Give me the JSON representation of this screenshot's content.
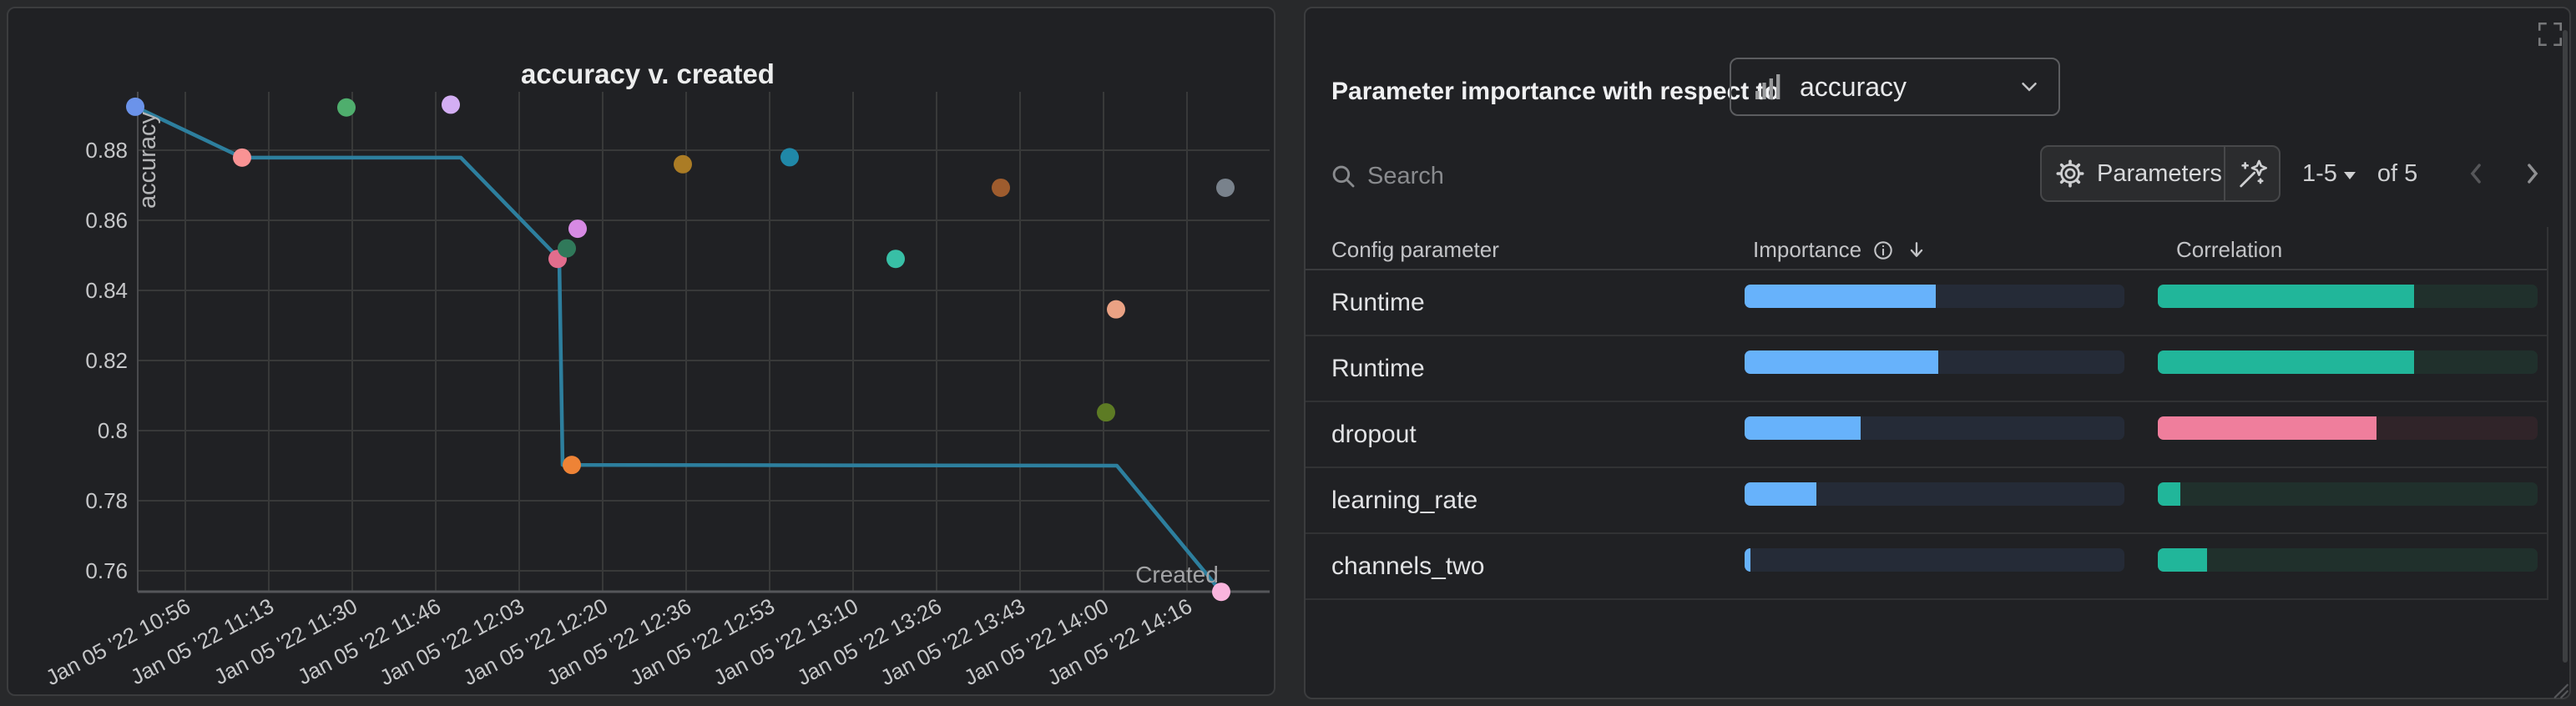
{
  "left_panel": {
    "title": "accuracy v. created",
    "chart_data": {
      "type": "scatter",
      "title": "accuracy v. created",
      "xlabel": "Created",
      "ylabel": "accuracy",
      "x_tick_labels": [
        "Jan 05 '22 10:56",
        "Jan 05 '22 11:13",
        "Jan 05 '22 11:30",
        "Jan 05 '22 11:46",
        "Jan 05 '22 12:03",
        "Jan 05 '22 12:20",
        "Jan 05 '22 12:36",
        "Jan 05 '22 12:53",
        "Jan 05 '22 13:10",
        "Jan 05 '22 13:26",
        "Jan 05 '22 13:43",
        "Jan 05 '22 14:00",
        "Jan 05 '22 14:16"
      ],
      "y_ticks": [
        0.88,
        0.86,
        0.84,
        0.82,
        0.8,
        0.78,
        0.76
      ],
      "y_tick_labels": [
        "0.88",
        "0.86",
        "0.84",
        "0.82",
        "0.8",
        "0.78",
        "0.76"
      ],
      "grid": true,
      "points": [
        {
          "x": -0.6,
          "y": 0.8924,
          "color": "#6b93ea"
        },
        {
          "x": 0.68,
          "y": 0.8779,
          "color": "#f99394"
        },
        {
          "x": 1.93,
          "y": 0.8922,
          "color": "#4fae6d"
        },
        {
          "x": 3.18,
          "y": 0.893,
          "color": "#d3aef3"
        },
        {
          "x": 4.46,
          "y": 0.849,
          "color": "#e26d8d"
        },
        {
          "x": 4.57,
          "y": 0.852,
          "color": "#30795a"
        },
        {
          "x": 4.7,
          "y": 0.8576,
          "color": "#d78ae4"
        },
        {
          "x": 4.63,
          "y": 0.7902,
          "color": "#ee8336"
        },
        {
          "x": 5.96,
          "y": 0.876,
          "color": "#ab7c25"
        },
        {
          "x": 7.24,
          "y": 0.878,
          "color": "#2088a8"
        },
        {
          "x": 8.51,
          "y": 0.849,
          "color": "#38bfa6"
        },
        {
          "x": 9.77,
          "y": 0.8693,
          "color": "#9e5c2e"
        },
        {
          "x": 11.03,
          "y": 0.8052,
          "color": "#5d7b24"
        },
        {
          "x": 11.15,
          "y": 0.8346,
          "color": "#eaa284"
        },
        {
          "x": 12.46,
          "y": 0.8693,
          "color": "#79828c"
        },
        {
          "x": 12.41,
          "y": 0.754,
          "color": "#f9b4dd"
        }
      ],
      "line": {
        "color": "#2d7f9e",
        "vertices": [
          [
            -0.6,
            0.8924
          ],
          [
            0.68,
            0.8779
          ],
          [
            3.3,
            0.8779
          ],
          [
            4.48,
            0.849
          ],
          [
            4.52,
            0.7902
          ],
          [
            11.16,
            0.79
          ],
          [
            12.41,
            0.754
          ]
        ]
      },
      "x_axis_note": "ticks every 16min 40s"
    }
  },
  "right_panel": {
    "title": "Parameter importance with respect to",
    "metric_select": {
      "value": "accuracy",
      "icon": "bar-chart"
    },
    "search_placeholder": "Search",
    "parameters_label": "Parameters",
    "pagination": {
      "range": "1-5",
      "of_label": "of 5"
    },
    "table": {
      "columns": {
        "parameter": "Config parameter",
        "importance": "Importance",
        "correlation": "Correlation"
      },
      "rows": [
        {
          "name": "Runtime",
          "importance": 0.503,
          "correlation": 0.675,
          "correlation_color": "#21b69a",
          "correlation_track": "#20302c"
        },
        {
          "name": "Runtime",
          "importance": 0.51,
          "correlation": 0.675,
          "correlation_color": "#21b69a",
          "correlation_track": "#20302c"
        },
        {
          "name": "dropout",
          "importance": 0.305,
          "correlation": 0.576,
          "correlation_color": "#ef7e9c",
          "correlation_track": "#302429"
        },
        {
          "name": "learning_rate",
          "importance": 0.19,
          "correlation": 0.06,
          "correlation_color": "#21b69a",
          "correlation_track": "#20302c"
        },
        {
          "name": "channels_two",
          "importance": 0.015,
          "correlation": 0.13,
          "correlation_color": "#21b69a",
          "correlation_track": "#20302c"
        }
      ]
    },
    "colors": {
      "importance_bar": "#67b2fb",
      "importance_track": "#252b37"
    }
  }
}
